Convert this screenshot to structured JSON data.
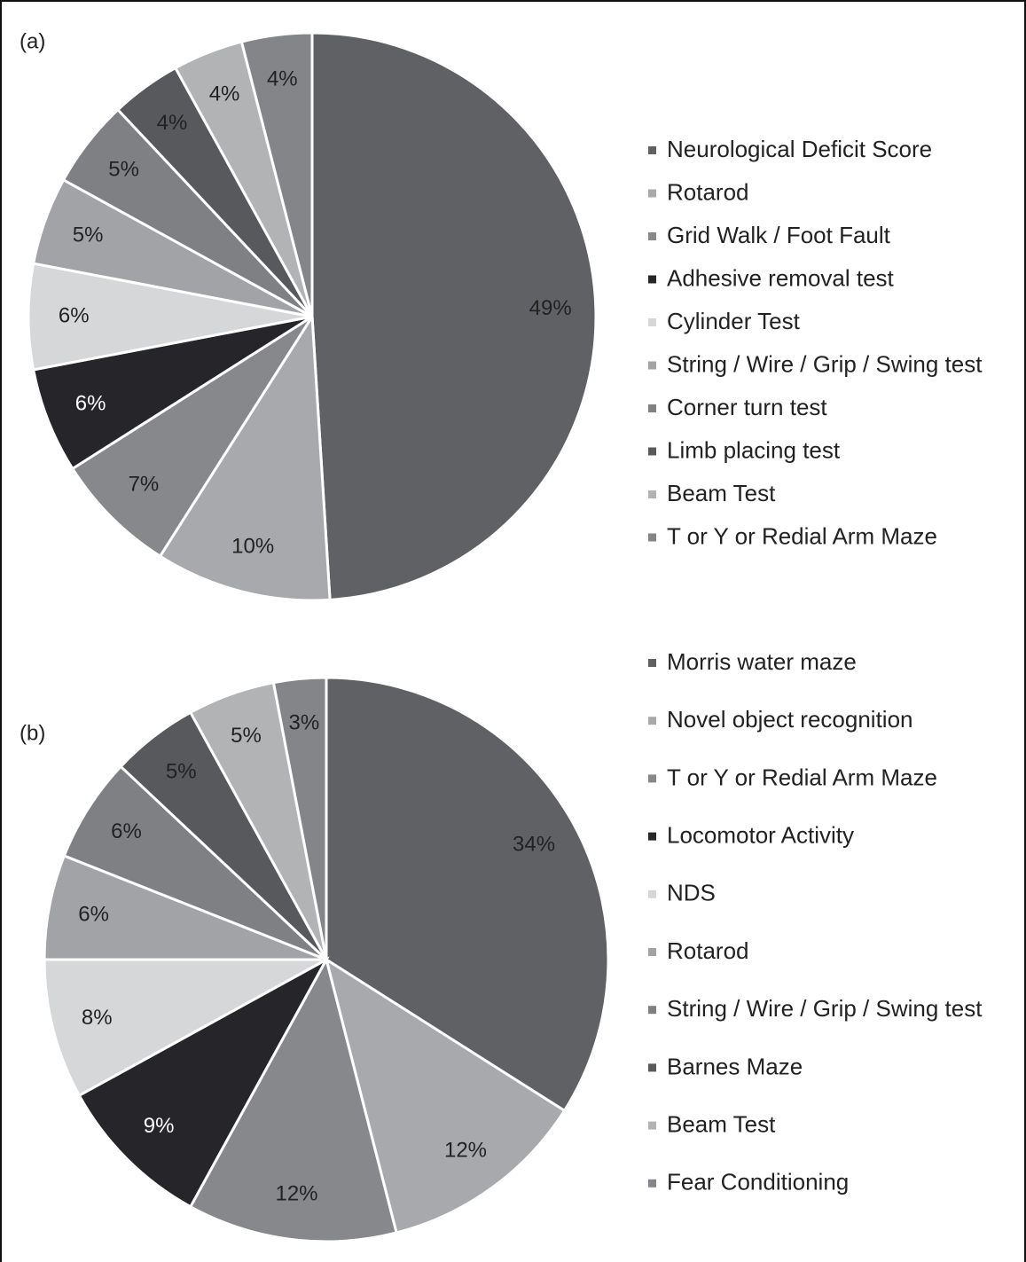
{
  "chart_data": [
    {
      "type": "pie",
      "title": "(a)",
      "categories": [
        "Neurological Deficit Score",
        "Rotarod",
        "Grid Walk / Foot Fault",
        "Adhesive removal test",
        "Cylinder Test",
        "String / Wire / Grip / Swing test",
        "Corner turn test",
        "Limb placing test",
        "Beam Test",
        "T or Y or Redial Arm Maze"
      ],
      "values": [
        49,
        10,
        7,
        6,
        6,
        5,
        5,
        4,
        4,
        4
      ],
      "value_labels": [
        "49%",
        "10%",
        "7%",
        "6%",
        "6%",
        "5%",
        "5%",
        "4%",
        "4%",
        "4%"
      ],
      "colors": [
        "#5f6164",
        "#a7a9ac",
        "#86888b",
        "#262529",
        "#d6d7d9",
        "#a1a3a6",
        "#7e8083",
        "#58595c",
        "#b1b3b5",
        "#838589"
      ],
      "legend": "right"
    },
    {
      "type": "pie",
      "title": "(b)",
      "categories": [
        "Morris water maze",
        "Novel object recognition",
        "T or Y or Redial Arm Maze",
        "Locomotor Activity",
        "NDS",
        "Rotarod",
        "String / Wire / Grip / Swing test",
        "Barnes Maze",
        "Beam Test",
        "Fear Conditioning"
      ],
      "values": [
        34,
        12,
        12,
        9,
        8,
        6,
        6,
        5,
        5,
        3
      ],
      "value_labels": [
        "34%",
        "12%",
        "12%",
        "9%",
        "8%",
        "6%",
        "6%",
        "5%",
        "5%",
        "3%"
      ],
      "colors": [
        "#5f6164",
        "#a7a9ac",
        "#86888b",
        "#262529",
        "#d6d7d9",
        "#a1a3a6",
        "#7e8083",
        "#58595c",
        "#b1b3b5",
        "#838589"
      ],
      "legend": "right"
    }
  ]
}
